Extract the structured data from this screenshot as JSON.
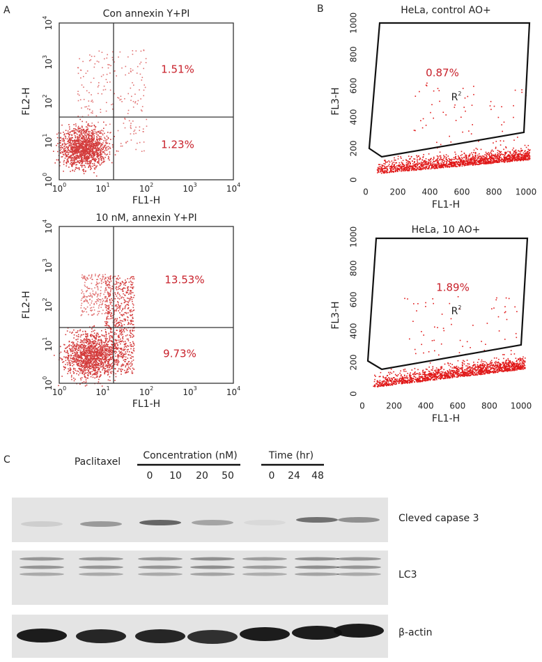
{
  "panel_labels": [
    "A",
    "B",
    "C"
  ],
  "flow_a": [
    {
      "title": "Con annexin Y+PI",
      "x_label": "FL1-H",
      "y_label": "FL2-H",
      "upper_right": "1.51%",
      "lower_right": "1.23%"
    },
    {
      "title": "10 nM, annexin Y+PI",
      "x_label": "FL1-H",
      "y_label": "FL2-H",
      "upper_right": "13.53%",
      "lower_right": "9.73%"
    }
  ],
  "log_ticks": {
    "base": "10",
    "exponents": [
      "0",
      "1",
      "2",
      "3",
      "4"
    ]
  },
  "flow_b": [
    {
      "title": "HeLa, control AO+",
      "x_label": "FL1-H",
      "y_label": "FL3-H",
      "gate_percent": "0.87%",
      "gate_name": "R",
      "gate_sup": "2"
    },
    {
      "title": "HeLa, 10 AO+",
      "x_label": "FL1-H",
      "y_label": "FL3-H",
      "gate_percent": "1.89%",
      "gate_name": "R",
      "gate_sup": "2"
    }
  ],
  "linear_ticks": [
    "0",
    "200",
    "400",
    "600",
    "800",
    "1000"
  ],
  "western": {
    "treatment": "Paclitaxel",
    "groups": [
      {
        "label": "Concentration (nM)",
        "lanes": [
          "0",
          "10",
          "20",
          "50"
        ]
      },
      {
        "label": "Time (hr)",
        "lanes": [
          "0",
          "24",
          "48"
        ]
      }
    ],
    "bands": [
      "Cleved capase 3",
      "LC3",
      "β-actin"
    ]
  }
}
